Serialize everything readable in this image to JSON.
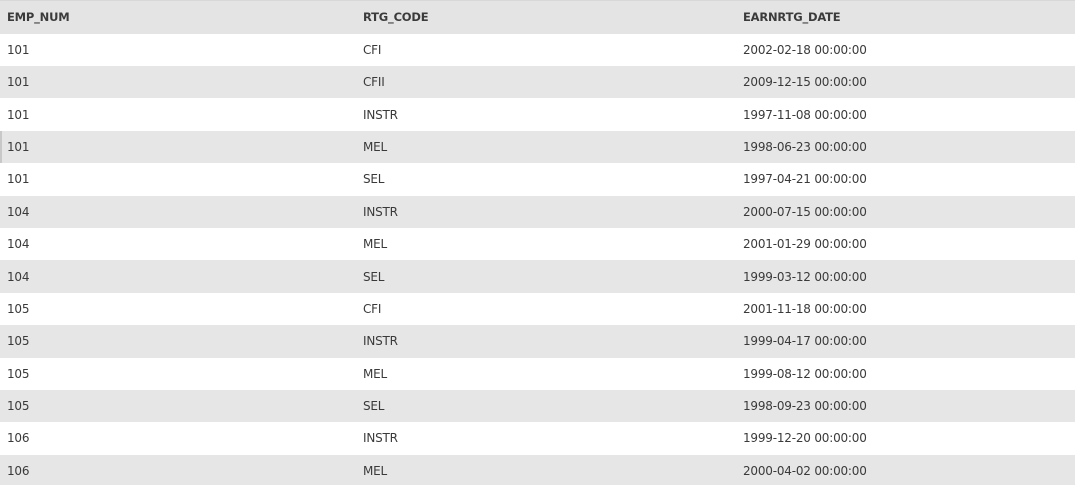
{
  "table": {
    "columns": [
      "EMP_NUM",
      "RTG_CODE",
      "EARNRTG_DATE"
    ],
    "rows": [
      [
        "101",
        "CFI",
        "2002-02-18 00:00:00"
      ],
      [
        "101",
        "CFII",
        "2009-12-15 00:00:00"
      ],
      [
        "101",
        "INSTR",
        "1997-11-08 00:00:00"
      ],
      [
        "101",
        "MEL",
        "1998-06-23 00:00:00"
      ],
      [
        "101",
        "SEL",
        "1997-04-21 00:00:00"
      ],
      [
        "104",
        "INSTR",
        "2000-07-15 00:00:00"
      ],
      [
        "104",
        "MEL",
        "2001-01-29 00:00:00"
      ],
      [
        "104",
        "SEL",
        "1999-03-12 00:00:00"
      ],
      [
        "105",
        "CFI",
        "2001-11-18 00:00:00"
      ],
      [
        "105",
        "INSTR",
        "1999-04-17 00:00:00"
      ],
      [
        "105",
        "MEL",
        "1999-08-12 00:00:00"
      ],
      [
        "105",
        "SEL",
        "1998-09-23 00:00:00"
      ],
      [
        "106",
        "INSTR",
        "1999-12-20 00:00:00"
      ],
      [
        "106",
        "MEL",
        "2000-04-02 00:00:00"
      ]
    ]
  },
  "colors": {
    "header_bg": "#e4e4e4",
    "row_even_bg": "#e6e6e6",
    "row_odd_bg": "#ffffff",
    "text": "#3a3a3a"
  }
}
